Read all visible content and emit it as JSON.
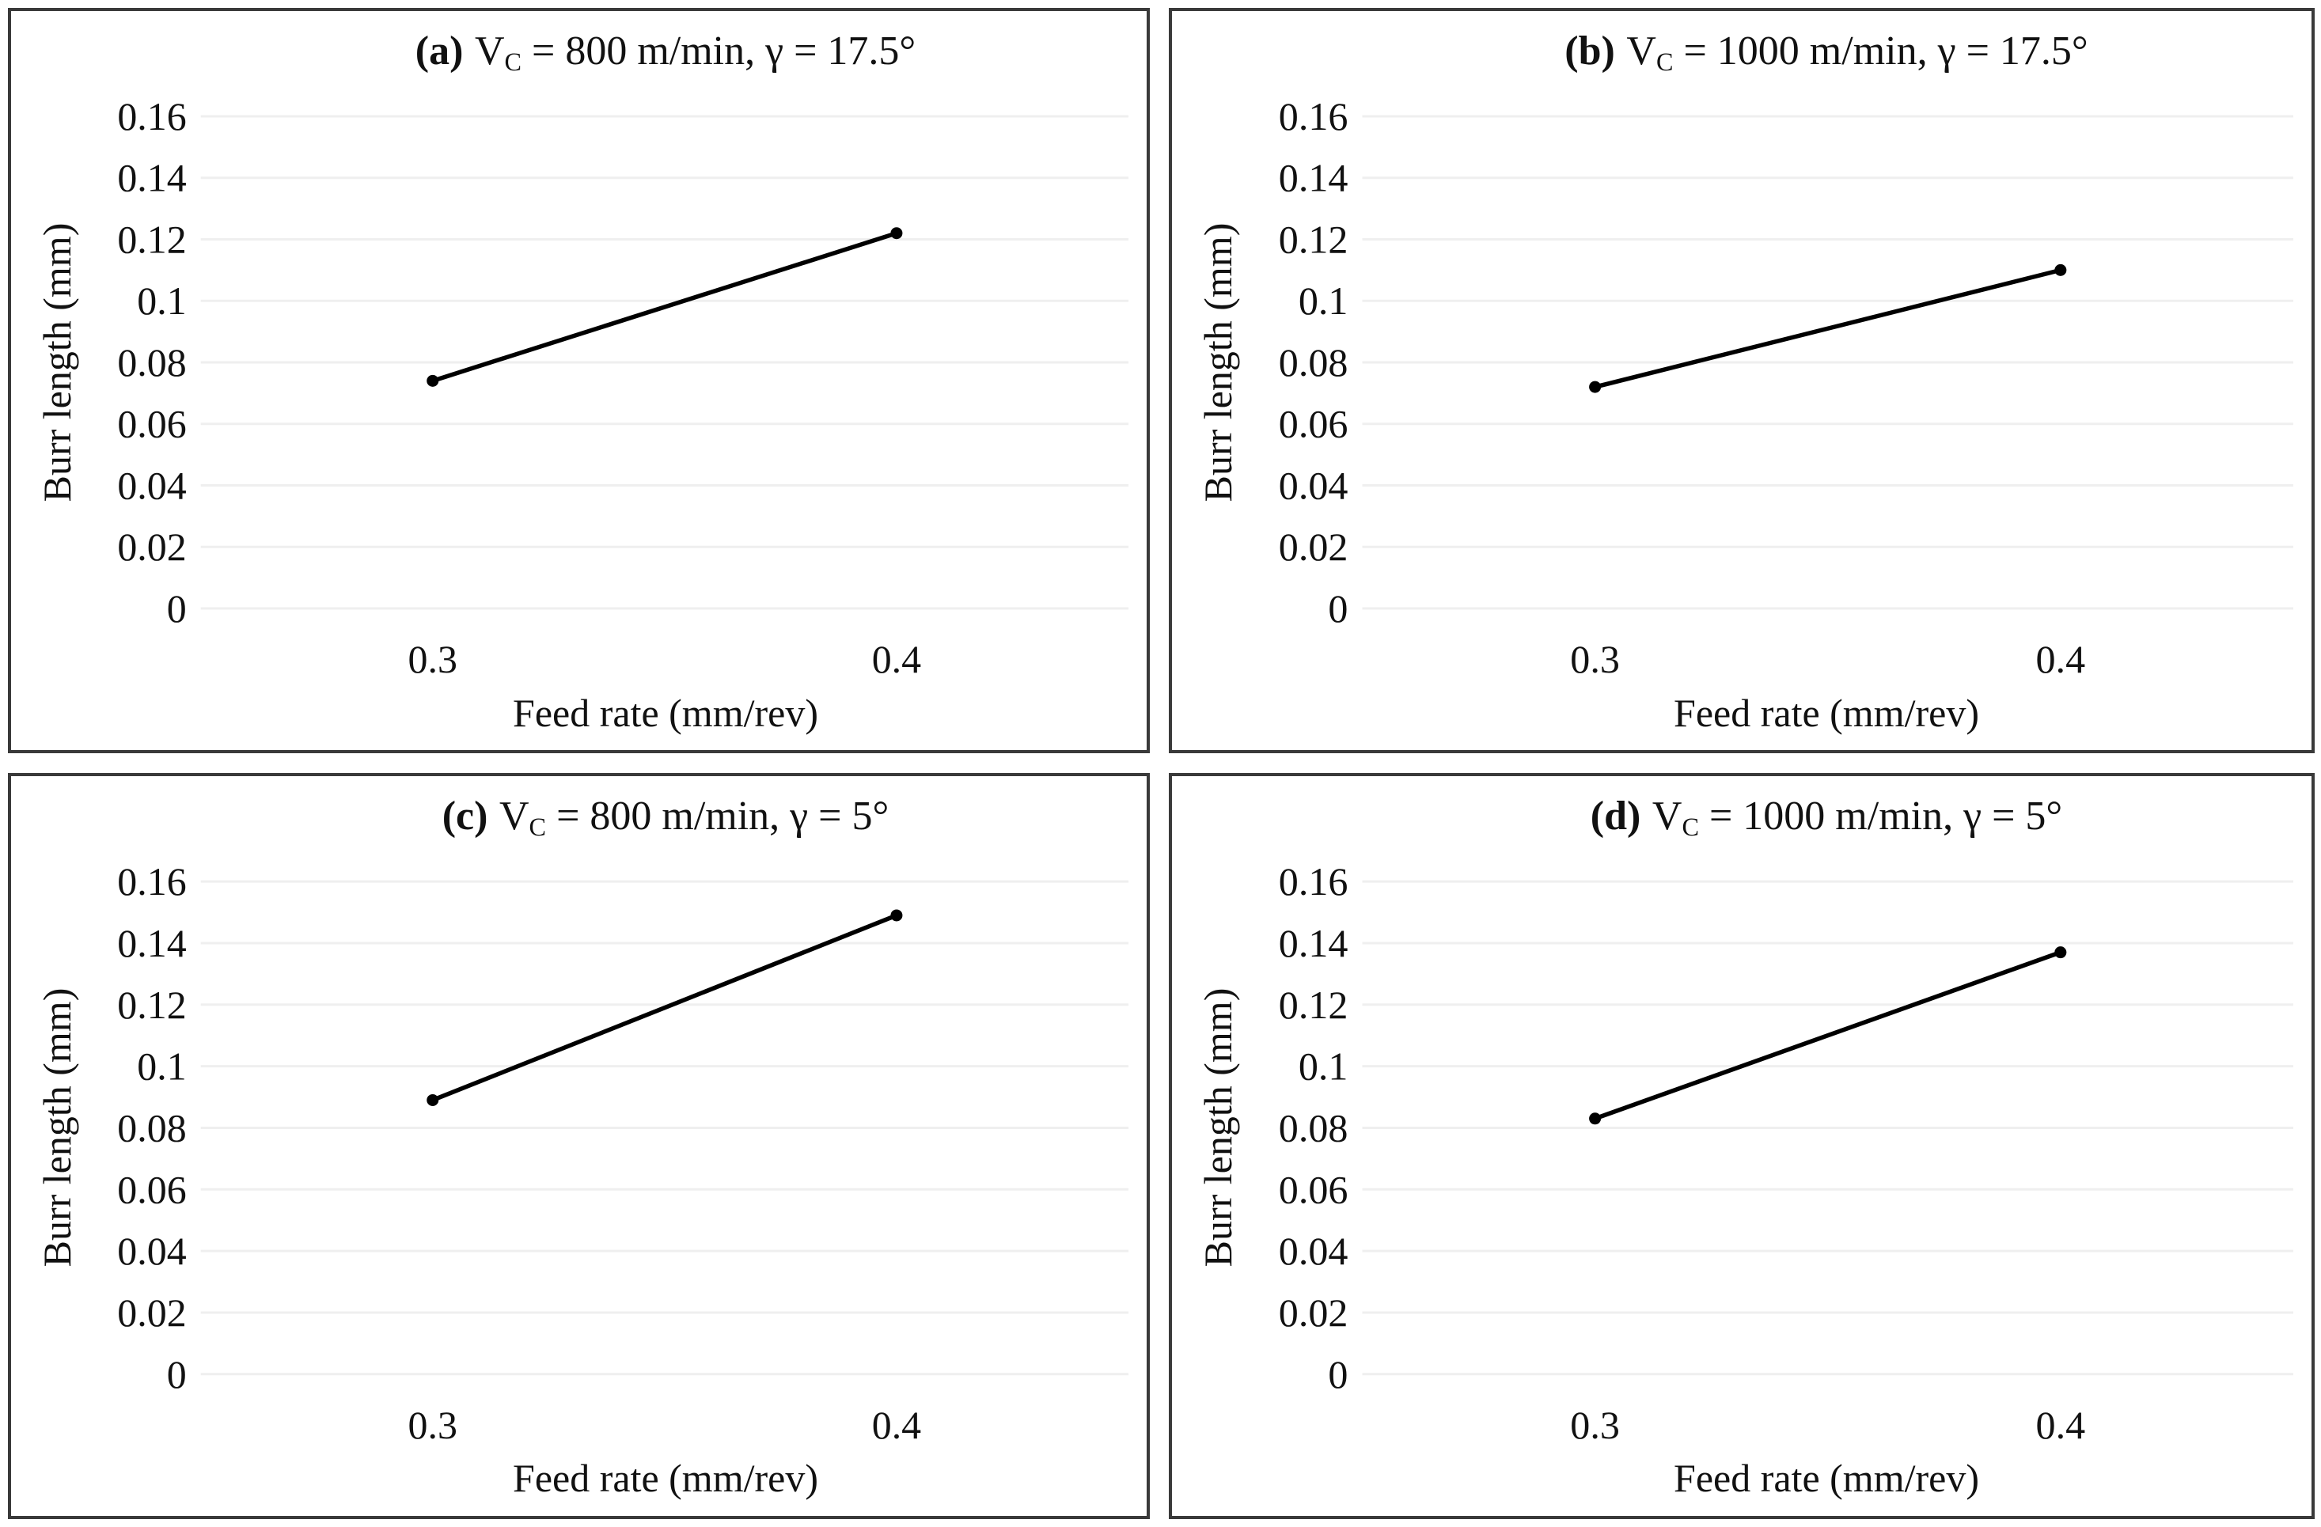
{
  "axes_common": {
    "xlabel": "Feed rate (mm/rev)",
    "ylabel": "Burr length (mm)",
    "yticks": [
      "0.16",
      "0.14",
      "0.12",
      "0.1",
      "0.08",
      "0.06",
      "0.04",
      "0.02",
      "0"
    ],
    "xticks": [
      "0.3",
      "0.4"
    ],
    "ylim": [
      0,
      0.16
    ],
    "ytick_step": 0.02,
    "grid": "horizontal-light",
    "legend_position": "none"
  },
  "styles": {
    "line_color": "#000000",
    "marker_color": "#000000",
    "gridline_color": "#efefef",
    "panel_border_color": "#3a3a3a",
    "text_color": "#111111",
    "background": "#ffffff"
  },
  "chart_data": [
    {
      "panel": "a",
      "type": "line",
      "title_prefix": "(a)",
      "title_v": "V",
      "title_sub": "C",
      "title_rest": " = 800 m/min, γ = 17.5°",
      "title_plain": "(a) V_C = 800 m/min, γ = 17.5°",
      "categories": [
        0.3,
        0.4
      ],
      "values": [
        0.074,
        0.122
      ],
      "marker": "filled-circle"
    },
    {
      "panel": "b",
      "type": "line",
      "title_prefix": "(b)",
      "title_v": "V",
      "title_sub": "C",
      "title_rest": " = 1000 m/min, γ = 17.5°",
      "title_plain": "(b) V_C = 1000 m/min, γ = 17.5°",
      "categories": [
        0.3,
        0.4
      ],
      "values": [
        0.072,
        0.11
      ],
      "marker": "filled-circle"
    },
    {
      "panel": "c",
      "type": "line",
      "title_prefix": "(c)",
      "title_v": "V",
      "title_sub": "C",
      "title_rest": " = 800 m/min, γ = 5°",
      "title_plain": "(c) V_C = 800 m/min, γ = 5°",
      "categories": [
        0.3,
        0.4
      ],
      "values": [
        0.089,
        0.149
      ],
      "marker": "filled-circle"
    },
    {
      "panel": "d",
      "type": "line",
      "title_prefix": "(d)",
      "title_v": "V",
      "title_sub": "C",
      "title_rest": " = 1000 m/min, γ = 5°",
      "title_plain": "(d) V_C = 1000 m/min, γ = 5°",
      "categories": [
        0.3,
        0.4
      ],
      "values": [
        0.083,
        0.137
      ],
      "marker": "filled-circle"
    }
  ]
}
